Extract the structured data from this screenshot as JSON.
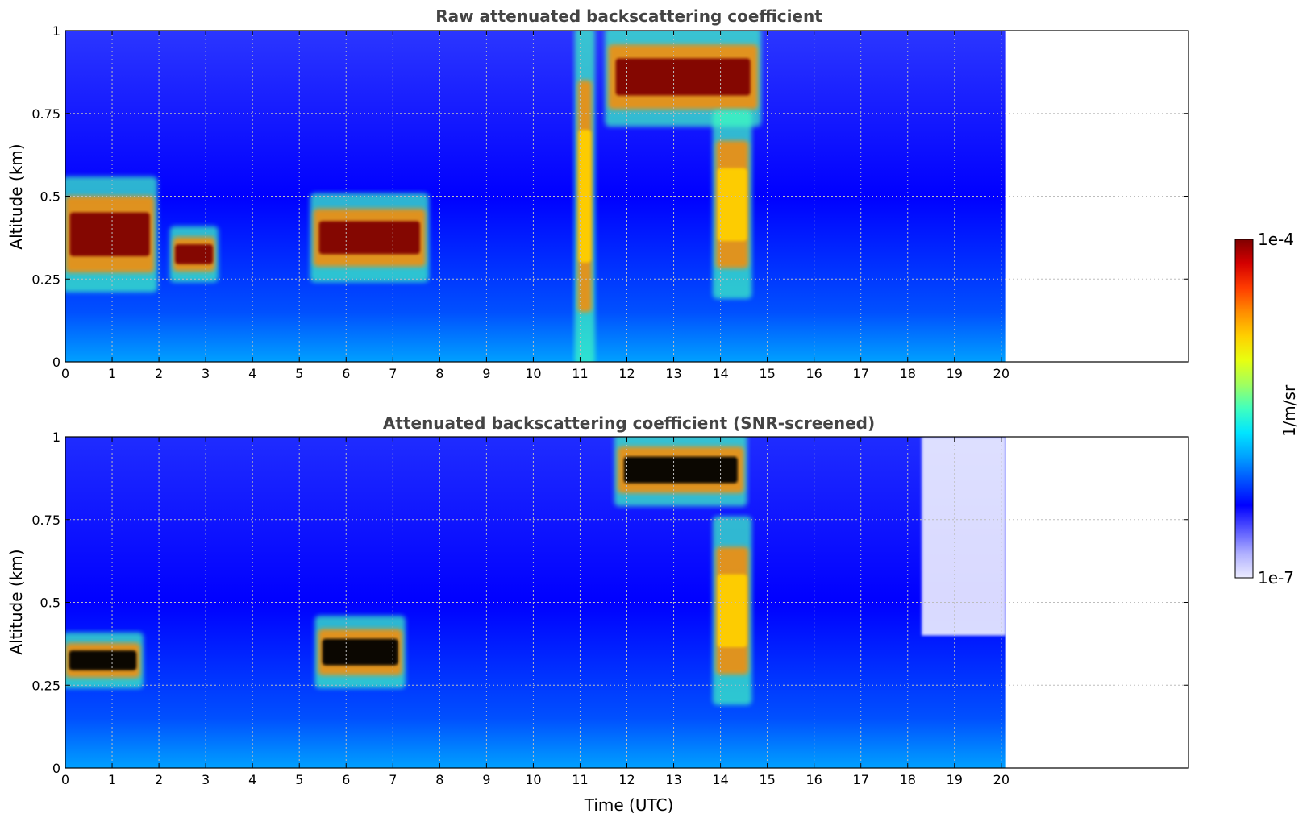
{
  "chart_data": [
    {
      "type": "heatmap",
      "title": "Raw attenuated backscattering coefficient",
      "xlabel": "",
      "ylabel": "Altitude (km)",
      "xlim": [
        0,
        24
      ],
      "ylim": [
        0,
        1
      ],
      "x_ticks": [
        "0",
        "1",
        "2",
        "3",
        "4",
        "5",
        "6",
        "7",
        "8",
        "9",
        "10",
        "11",
        "12",
        "13",
        "14",
        "15",
        "16",
        "17",
        "18",
        "19",
        "20"
      ],
      "y_ticks": [
        "0",
        "0.25",
        "0.5",
        "0.75",
        "1"
      ],
      "data_extent_x": [
        0,
        20.1
      ],
      "grid": true,
      "features": [
        {
          "name": "boundary-layer",
          "x": [
            0,
            1.9
          ],
          "y": [
            0.22,
            0.55
          ],
          "level": "high"
        },
        {
          "name": "cloud-band",
          "x": [
            2.3,
            3.2
          ],
          "y": [
            0.25,
            0.4
          ],
          "level": "high"
        },
        {
          "name": "cloud-band",
          "x": [
            5.3,
            7.7
          ],
          "y": [
            0.25,
            0.5
          ],
          "level": "high"
        },
        {
          "name": "elevated-cloud",
          "x": [
            11.6,
            14.8
          ],
          "y": [
            0.72,
            1.0
          ],
          "level": "high"
        },
        {
          "name": "precipitation-shaft",
          "x": [
            13.9,
            14.6
          ],
          "y": [
            0.2,
            0.75
          ],
          "level": "medium"
        },
        {
          "name": "vertical-streak",
          "x": [
            10.95,
            11.25
          ],
          "y": [
            0,
            1
          ],
          "level": "medium"
        }
      ]
    },
    {
      "type": "heatmap",
      "title": "Attenuated backscattering coefficient (SNR-screened)",
      "xlabel": "Time (UTC)",
      "ylabel": "Altitude (km)",
      "xlim": [
        0,
        24
      ],
      "ylim": [
        0,
        1
      ],
      "x_ticks": [
        "0",
        "1",
        "2",
        "3",
        "4",
        "5",
        "6",
        "7",
        "8",
        "9",
        "10",
        "11",
        "12",
        "13",
        "14",
        "15",
        "16",
        "17",
        "18",
        "19",
        "20"
      ],
      "y_ticks": [
        "0",
        "0.25",
        "0.5",
        "0.75",
        "1"
      ],
      "data_extent_x": [
        0,
        20.1
      ],
      "grid": true,
      "features": [
        {
          "name": "saturated-cloud",
          "x": [
            0,
            1.6
          ],
          "y": [
            0.25,
            0.4
          ],
          "level": "saturated"
        },
        {
          "name": "saturated-cloud",
          "x": [
            5.4,
            7.2
          ],
          "y": [
            0.25,
            0.45
          ],
          "level": "saturated"
        },
        {
          "name": "saturated-cloud",
          "x": [
            11.8,
            14.5
          ],
          "y": [
            0.8,
            1.0
          ],
          "level": "saturated"
        },
        {
          "name": "precipitation-shaft",
          "x": [
            13.9,
            14.6
          ],
          "y": [
            0.2,
            0.75
          ],
          "level": "medium"
        },
        {
          "name": "screened-region",
          "x": [
            18.3,
            20.1
          ],
          "y": [
            0.4,
            1.0
          ],
          "level": "masked"
        }
      ]
    }
  ],
  "colorbar": {
    "label": "1/m/sr",
    "max_label": "1e-4",
    "min_label": "1e-7",
    "colors": [
      "#ececff",
      "#b0b0ff",
      "#5656ff",
      "#0000ff",
      "#0050ff",
      "#00a0ff",
      "#00e5ff",
      "#40ffbf",
      "#a0ff60",
      "#e8ff10",
      "#ffd000",
      "#ff8c00",
      "#ff3c00",
      "#d40000",
      "#800000"
    ]
  }
}
